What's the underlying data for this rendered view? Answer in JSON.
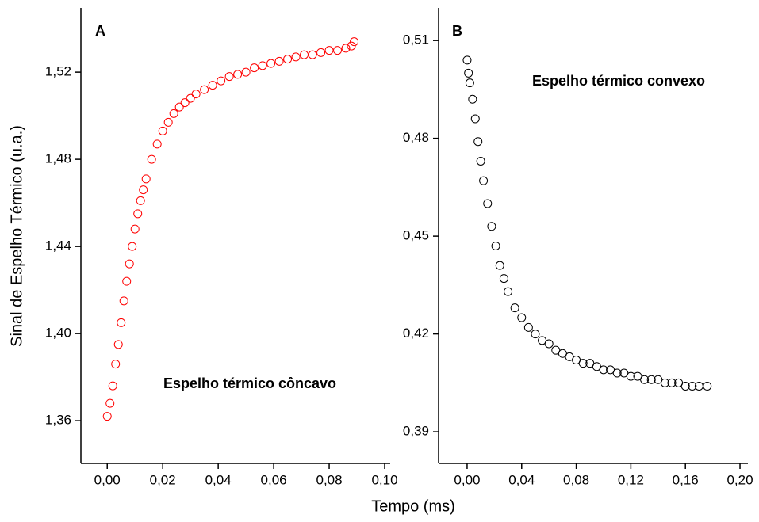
{
  "xlabel": "Tempo (ms)",
  "ylabel": "Sinal de Espelho Térmico (u.a.)",
  "chart_data": [
    {
      "type": "scatter",
      "annotations": [
        "A",
        "Espelho térmico côncavo"
      ],
      "xlim": [
        -0.0095,
        0.102
      ],
      "ylim": [
        1.3404,
        1.5495
      ],
      "xticks": [
        {
          "value": 0,
          "label": "0,00"
        },
        {
          "value": 0.02,
          "label": "0,02"
        },
        {
          "value": 0.04,
          "label": "0,04"
        },
        {
          "value": 0.06,
          "label": "0,06"
        },
        {
          "value": 0.08,
          "label": "0,08"
        },
        {
          "value": 0.1,
          "label": "0,10"
        }
      ],
      "yticks": [
        {
          "value": 1.36,
          "label": "1,36"
        },
        {
          "value": 1.4,
          "label": "1,40"
        },
        {
          "value": 1.44,
          "label": "1,44"
        },
        {
          "value": 1.48,
          "label": "1,48"
        },
        {
          "value": 1.52,
          "label": "1,52"
        }
      ],
      "series": [
        {
          "color": "#ff0000",
          "x": [
            0.0,
            0.001,
            0.002,
            0.003,
            0.004,
            0.005,
            0.006,
            0.007,
            0.008,
            0.009,
            0.01,
            0.011,
            0.012,
            0.013,
            0.014,
            0.016,
            0.018,
            0.02,
            0.022,
            0.024,
            0.026,
            0.028,
            0.03,
            0.032,
            0.035,
            0.038,
            0.041,
            0.044,
            0.047,
            0.05,
            0.053,
            0.056,
            0.059,
            0.062,
            0.065,
            0.068,
            0.071,
            0.074,
            0.077,
            0.08,
            0.083,
            0.086,
            0.088,
            0.089
          ],
          "values": [
            1.362,
            1.368,
            1.376,
            1.386,
            1.395,
            1.405,
            1.415,
            1.424,
            1.432,
            1.44,
            1.448,
            1.455,
            1.461,
            1.466,
            1.471,
            1.48,
            1.487,
            1.493,
            1.497,
            1.501,
            1.504,
            1.506,
            1.508,
            1.51,
            1.512,
            1.514,
            1.516,
            1.518,
            1.519,
            1.52,
            1.522,
            1.523,
            1.524,
            1.525,
            1.526,
            1.527,
            1.528,
            1.528,
            1.529,
            1.53,
            1.53,
            1.531,
            1.532,
            1.534
          ]
        }
      ]
    },
    {
      "type": "scatter",
      "annotations": [
        "B",
        "Espelho térmico convexo"
      ],
      "xlim": [
        -0.0209,
        0.2058
      ],
      "ylim": [
        0.3803,
        0.52
      ],
      "xticks": [
        {
          "value": 0,
          "label": "0,00"
        },
        {
          "value": 0.04,
          "label": "0,04"
        },
        {
          "value": 0.08,
          "label": "0,08"
        },
        {
          "value": 0.12,
          "label": "0,12"
        },
        {
          "value": 0.16,
          "label": "0,16"
        },
        {
          "value": 0.2,
          "label": "0,20"
        }
      ],
      "yticks": [
        {
          "value": 0.39,
          "label": "0,39"
        },
        {
          "value": 0.42,
          "label": "0,42"
        },
        {
          "value": 0.45,
          "label": "0,45"
        },
        {
          "value": 0.48,
          "label": "0,48"
        },
        {
          "value": 0.51,
          "label": "0,51"
        }
      ],
      "series": [
        {
          "color": "#000000",
          "x": [
            0.0,
            0.001,
            0.002,
            0.004,
            0.006,
            0.008,
            0.01,
            0.012,
            0.015,
            0.018,
            0.021,
            0.024,
            0.027,
            0.03,
            0.035,
            0.04,
            0.045,
            0.05,
            0.055,
            0.06,
            0.065,
            0.07,
            0.075,
            0.08,
            0.085,
            0.09,
            0.095,
            0.1,
            0.105,
            0.11,
            0.115,
            0.12,
            0.125,
            0.13,
            0.135,
            0.14,
            0.145,
            0.15,
            0.155,
            0.16,
            0.165,
            0.17,
            0.176
          ],
          "values": [
            0.504,
            0.5,
            0.497,
            0.492,
            0.486,
            0.479,
            0.473,
            0.467,
            0.46,
            0.453,
            0.447,
            0.441,
            0.437,
            0.433,
            0.428,
            0.425,
            0.422,
            0.42,
            0.418,
            0.417,
            0.415,
            0.414,
            0.413,
            0.412,
            0.411,
            0.411,
            0.41,
            0.409,
            0.409,
            0.408,
            0.408,
            0.407,
            0.407,
            0.406,
            0.406,
            0.406,
            0.405,
            0.405,
            0.405,
            0.404,
            0.404,
            0.404,
            0.404
          ]
        }
      ]
    }
  ]
}
